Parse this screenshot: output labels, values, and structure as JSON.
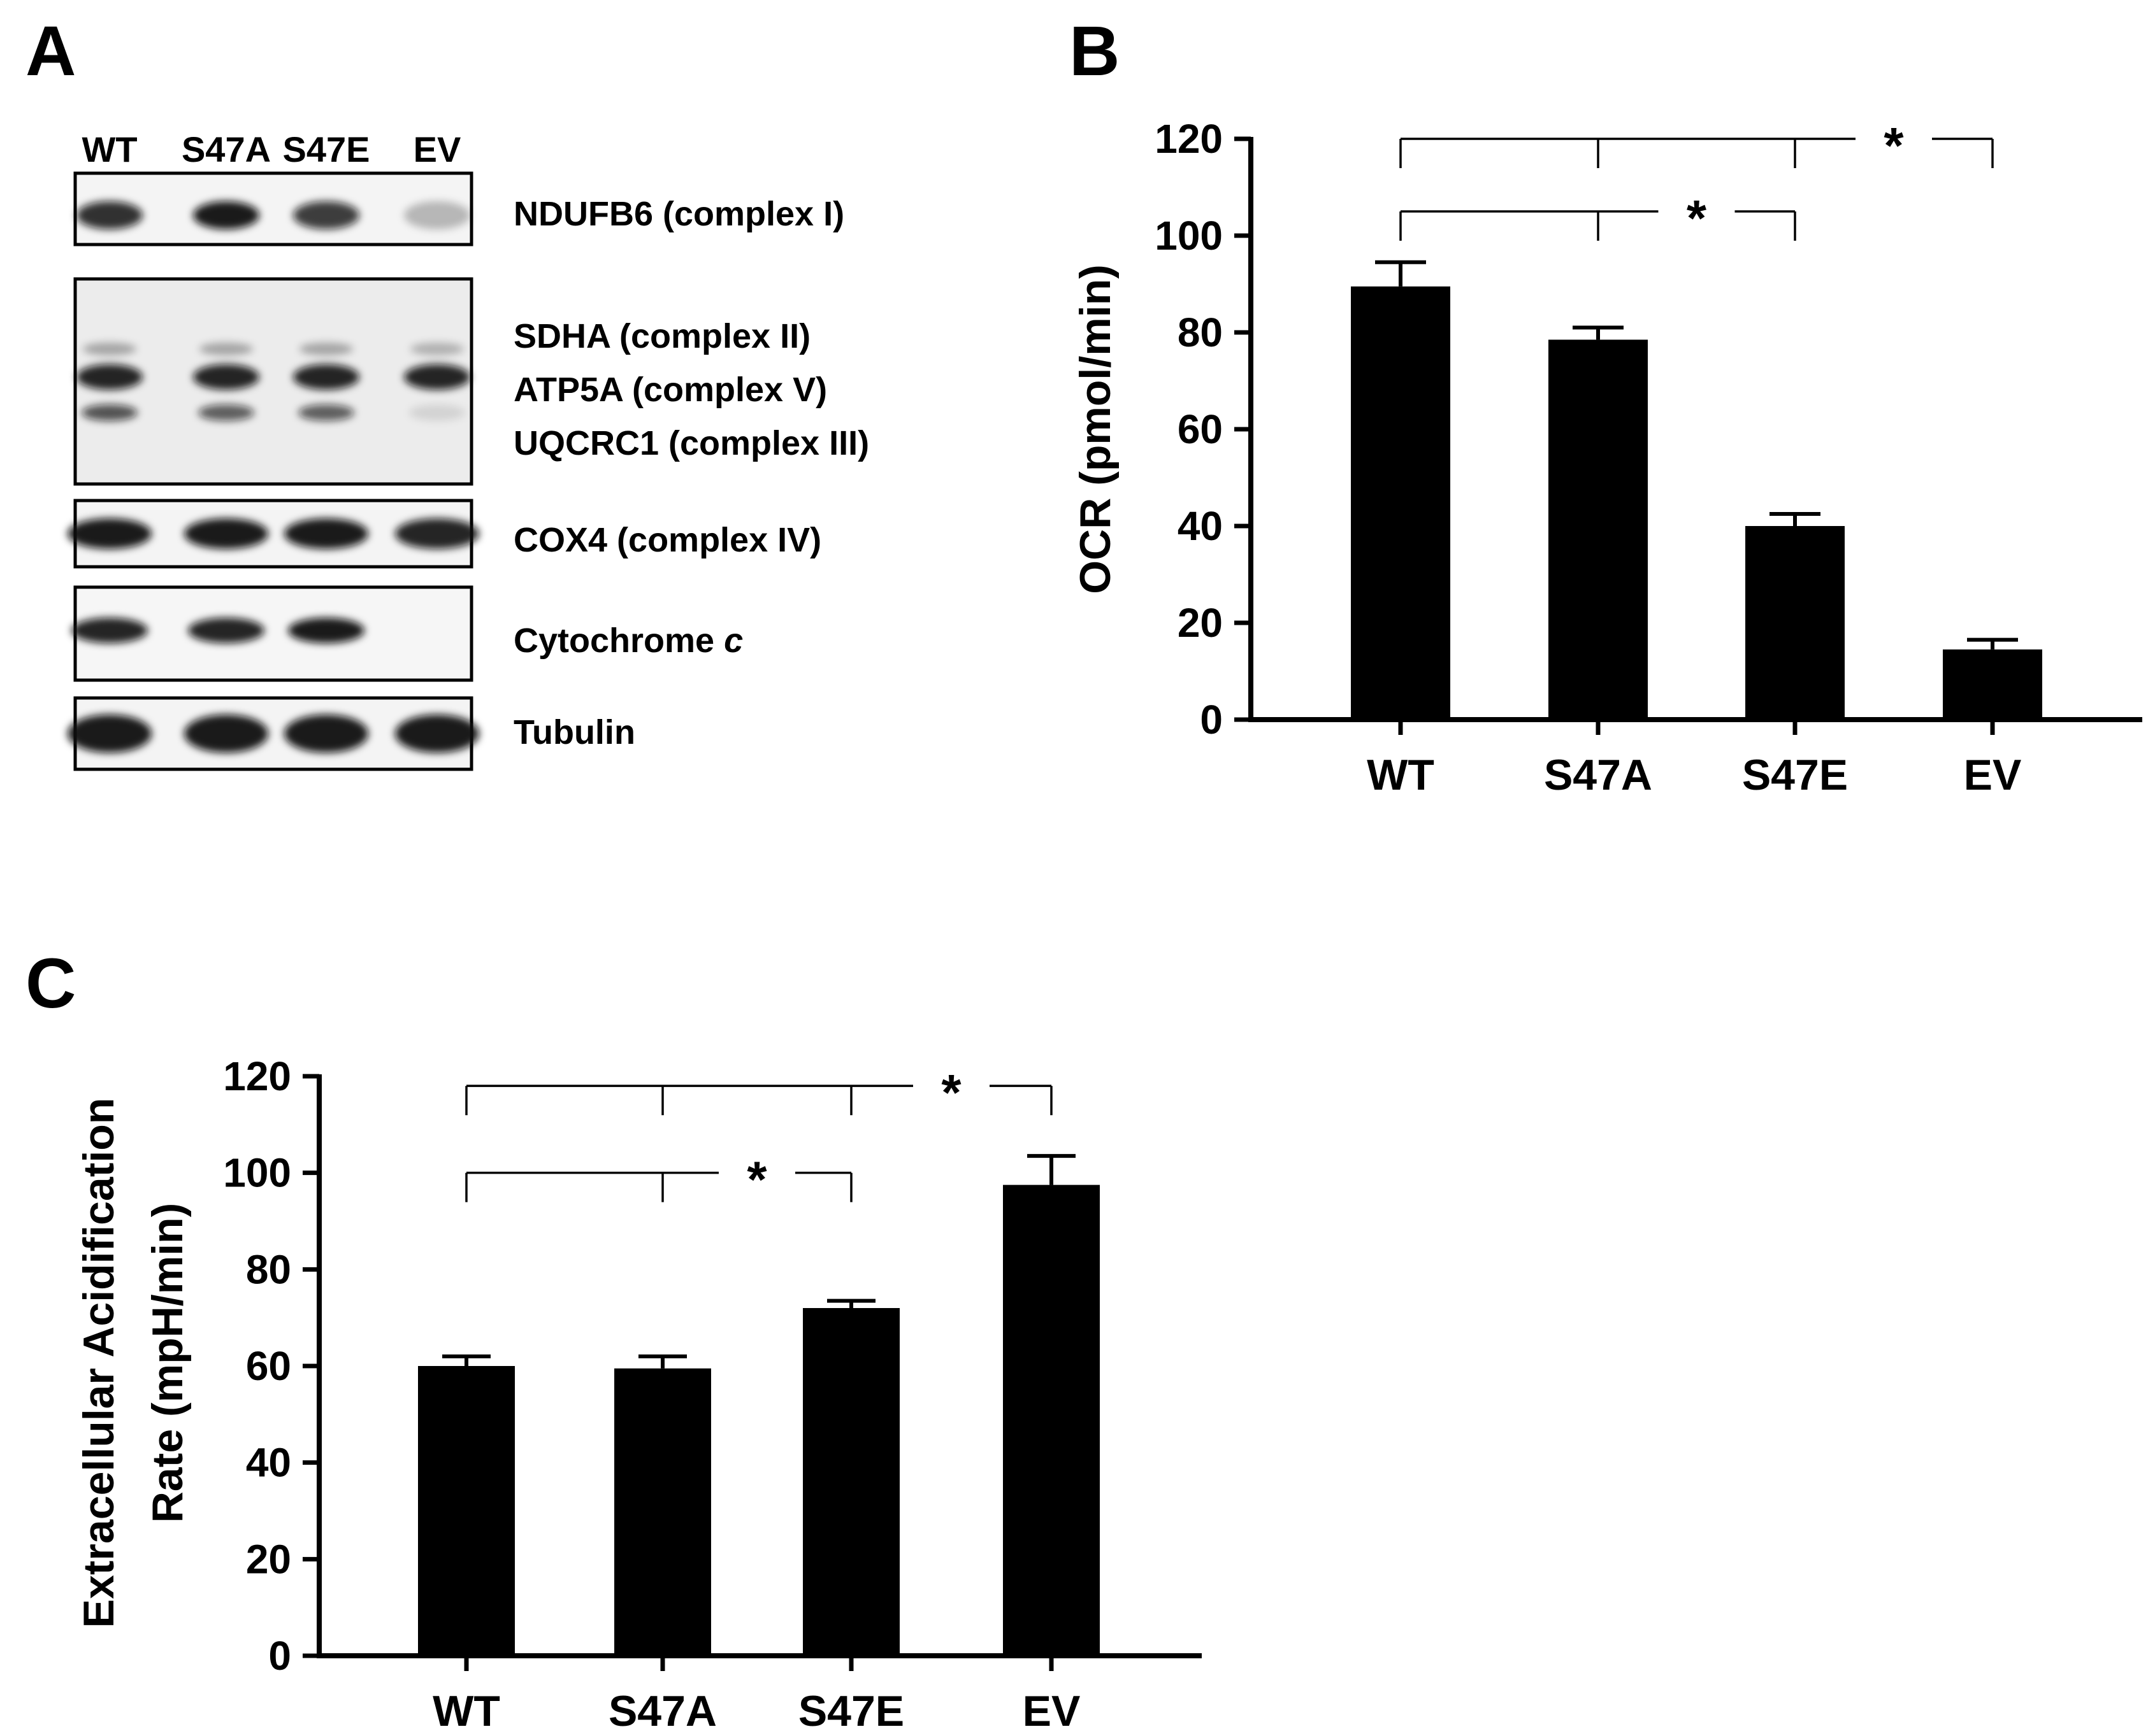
{
  "panels": {
    "a_label": "A",
    "b_label": "B",
    "c_label": "C"
  },
  "blot": {
    "lanes": [
      "WT",
      "S47A",
      "S47E",
      "EV"
    ],
    "labels": {
      "ndufb6": "NDUFB6 (complex I)",
      "sdha": "SDHA (complex II)",
      "atp5a": "ATP5A (complex V)",
      "uqcrc1": "UQCRC1 (complex III)",
      "cox4": "COX4 (complex IV)",
      "cytc_main": "Cytochrome ",
      "cytc_italic": "c",
      "tubulin": "Tubulin"
    },
    "band_intensity": {
      "ndufb6": [
        0.85,
        0.95,
        0.8,
        0.25
      ],
      "sdha": [
        0.3,
        0.3,
        0.3,
        0.25
      ],
      "atp5a": [
        0.9,
        0.9,
        0.9,
        0.9
      ],
      "uqcrc1": [
        0.7,
        0.65,
        0.65,
        0.1
      ],
      "cox4": [
        0.95,
        0.95,
        0.95,
        0.9
      ],
      "cytc": [
        0.9,
        0.9,
        0.95,
        0.0
      ],
      "tubulin": [
        0.95,
        0.95,
        0.95,
        0.95
      ]
    }
  },
  "chart_data": [
    {
      "type": "bar",
      "panel": "B",
      "categories": [
        "WT",
        "S47A",
        "S47E",
        "EV"
      ],
      "values": [
        89.5,
        78.5,
        40,
        14.5
      ],
      "errors": [
        5,
        2.5,
        2.5,
        2
      ],
      "ylabel": "OCR (pmol/min)",
      "ylim": [
        0,
        120
      ],
      "yticks": [
        0,
        20,
        40,
        60,
        80,
        100,
        120
      ],
      "significance": [
        {
          "from": 0,
          "to": 3,
          "mid": 1,
          "label": "*",
          "level": 120
        },
        {
          "from": 0,
          "to": 2,
          "mid": 1,
          "label": "*",
          "level": 105
        }
      ]
    },
    {
      "type": "bar",
      "panel": "C",
      "categories": [
        "WT",
        "S47A",
        "S47E",
        "EV"
      ],
      "values": [
        60,
        59.5,
        72,
        97.5
      ],
      "errors": [
        2,
        2.5,
        1.5,
        6
      ],
      "ylabel_line1": "Extracellular Acidification",
      "ylabel_line2": "Rate (mpH/min)",
      "ylim": [
        0,
        120
      ],
      "yticks": [
        0,
        20,
        40,
        60,
        80,
        100,
        120
      ],
      "significance": [
        {
          "from": 0,
          "to": 3,
          "mid": 1,
          "label": "*",
          "level": 118
        },
        {
          "from": 0,
          "to": 2,
          "mid": 1,
          "label": "*",
          "level": 100
        }
      ]
    }
  ],
  "colors": {
    "bar": "#000000",
    "blot_bg": "#f2f2f2",
    "band": "#111111"
  }
}
